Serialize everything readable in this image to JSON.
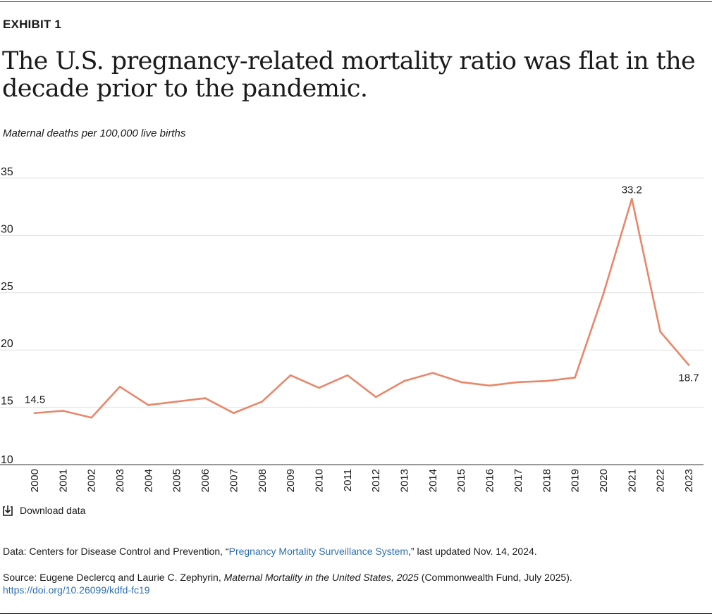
{
  "exhibit": "EXHIBIT 1",
  "title": "The U.S. pregnancy-related mortality ratio was flat in the decade prior to the pandemic.",
  "subtitle": "Maternal deaths per 100,000 live births",
  "download_label": "Download data",
  "data_note": {
    "prefix": "Data: Centers for Disease Control and Prevention, “",
    "link_text": "Pregnancy Mortality Surveillance System",
    "suffix": ",” last updated Nov. 14, 2024."
  },
  "source_note": {
    "prefix": "Source: Eugene Declercq and Laurie C. Zephyrin, ",
    "italic": "Maternal Mortality in the United States, 2025",
    "suffix": " (Commonwealth Fund, July 2025).",
    "doi": "https://doi.org/10.26099/kdfd-fc19"
  },
  "colors": {
    "line": "#e8876a",
    "grid": "#e3e3e3",
    "link": "#2c6fb0"
  },
  "chart_data": {
    "type": "line",
    "title": "The U.S. pregnancy-related mortality ratio was flat in the decade prior to the pandemic.",
    "ylabel": "Maternal deaths per 100,000 live births",
    "xlabel": "",
    "ylim": [
      10,
      35
    ],
    "yticks": [
      "35",
      "30",
      "25",
      "20",
      "15",
      "10"
    ],
    "grid": true,
    "categories": [
      "2000",
      "2001",
      "2002",
      "2003",
      "2004",
      "2005",
      "2006",
      "2007",
      "2008",
      "2009",
      "2010",
      "2011",
      "2012",
      "2013",
      "2014",
      "2015",
      "2016",
      "2017",
      "2018",
      "2019",
      "2020",
      "2021",
      "2022",
      "2023"
    ],
    "series": [
      {
        "name": "Pregnancy-related mortality ratio",
        "values": [
          14.5,
          14.7,
          14.1,
          16.8,
          15.2,
          15.5,
          15.8,
          14.5,
          15.5,
          17.8,
          16.7,
          17.8,
          15.9,
          17.3,
          18.0,
          17.2,
          16.9,
          17.2,
          17.3,
          17.6,
          24.9,
          33.2,
          21.6,
          18.7
        ]
      }
    ],
    "data_labels": [
      {
        "index": 0,
        "text": "14.5"
      },
      {
        "index": 21,
        "text": "33.2"
      },
      {
        "index": 23,
        "text": "18.7"
      }
    ]
  }
}
